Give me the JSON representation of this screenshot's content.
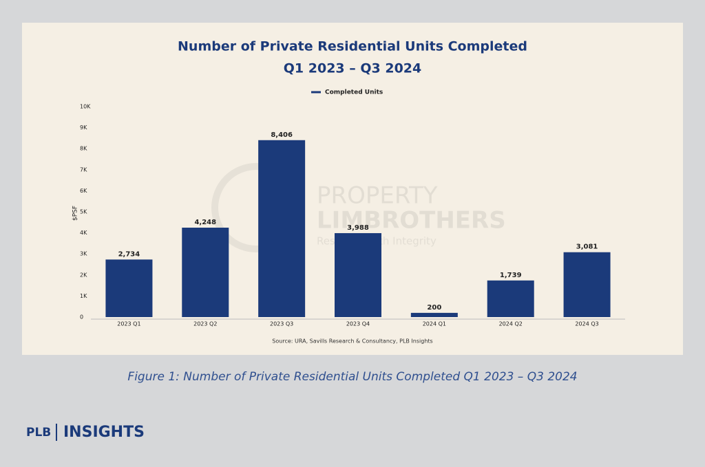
{
  "chart_data": {
    "type": "bar",
    "title": "Number of Private Residential Units Completed",
    "subtitle": "Q1 2023 – Q3 2024",
    "ylabel": "$PSF",
    "source": "Source: URA, Savills Research & Consultancy, PLB Insights",
    "categories": [
      "2023 Q1",
      "2023 Q2",
      "2023 Q3",
      "2023 Q4",
      "2024 Q1",
      "2024 Q2",
      "2024 Q3"
    ],
    "series": [
      {
        "name": "Completed Units",
        "color": "#1b3a7a",
        "values": [
          2734,
          4248,
          8406,
          3988,
          200,
          1739,
          3081
        ],
        "value_labels": [
          "2,734",
          "4,248",
          "8,406",
          "3,988",
          "200",
          "1,739",
          "3,081"
        ]
      }
    ],
    "ylim": [
      0,
      10000
    ],
    "yticks": [
      0,
      {
        "value": 1000,
        "label": "1K"
      },
      {
        "value": 2000,
        "label": "2K"
      },
      {
        "value": 3000,
        "label": "3K"
      },
      {
        "value": 4000,
        "label": "4K"
      },
      {
        "value": 5000,
        "label": "5K"
      },
      {
        "value": 6000,
        "label": "6K"
      },
      {
        "value": 7000,
        "label": "7K"
      },
      {
        "value": 8000,
        "label": "8K"
      },
      {
        "value": 9000,
        "label": "9K"
      },
      {
        "value": 10000,
        "label": "10K"
      }
    ],
    "grid": false,
    "legend": "top"
  },
  "watermark": {
    "line1": "PROPERTY",
    "line2": "LIMBROTHERS",
    "line3": "Research with Integrity"
  },
  "caption": "Figure 1: Number of Private Residential Units Completed Q1 2023 – Q3 2024",
  "logo": {
    "left": "PLB",
    "right": "INSIGHTS"
  }
}
